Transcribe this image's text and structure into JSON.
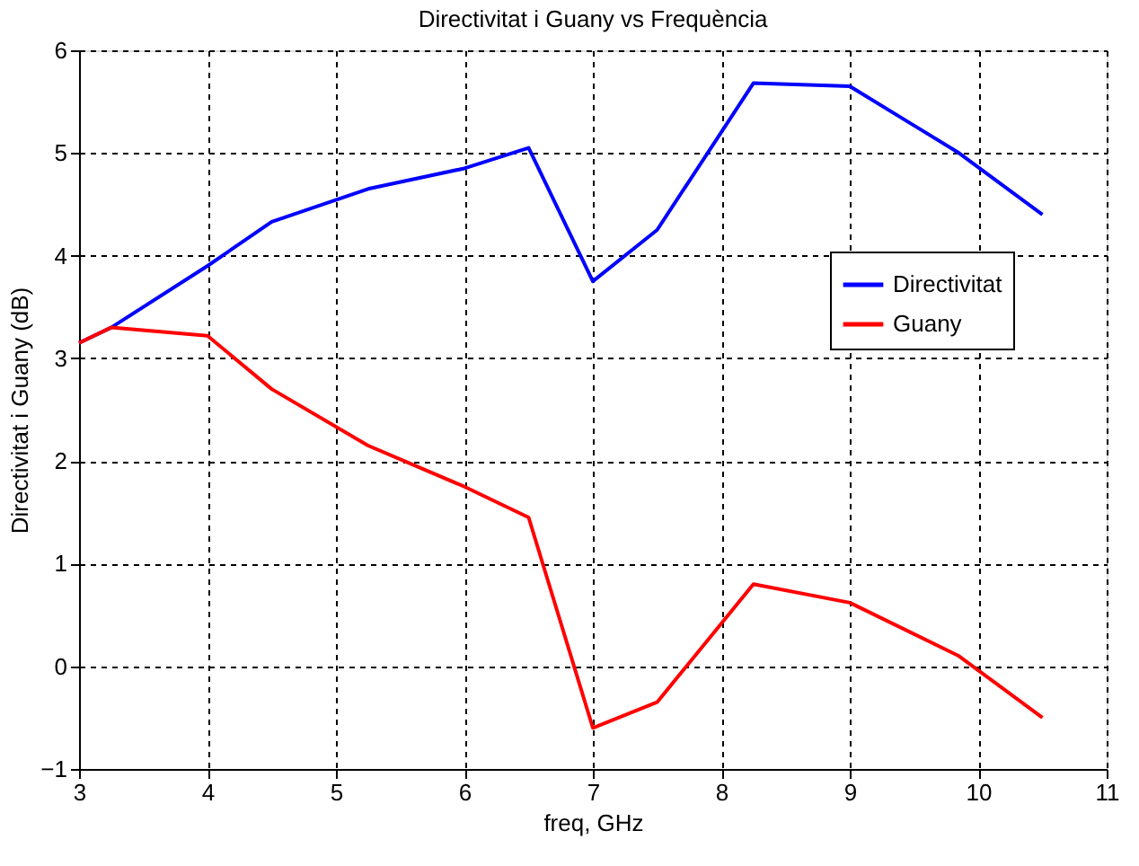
{
  "chart_data": {
    "type": "line",
    "title": "Directivitat i Guany vs Frequència",
    "xlabel": "freq, GHz",
    "ylabel": "Directivitat i Guany (dB)",
    "xlim": [
      3,
      11
    ],
    "xticks": [
      3,
      4,
      5,
      6,
      7,
      8,
      9,
      10,
      11
    ],
    "ylim": [
      -1,
      6
    ],
    "yticks": [
      -1,
      0,
      1,
      2,
      3,
      4,
      5,
      6
    ],
    "grid": true,
    "legend": "right",
    "line_style": "solid",
    "marker": "none",
    "series": [
      {
        "name": "Directivitat",
        "color": "#0000ff",
        "x": [
          3,
          3.25,
          4,
          4.5,
          5.25,
          6,
          6.5,
          7,
          7.5,
          8.25,
          9,
          9.85,
          10.5
        ],
        "values": [
          3.15,
          3.3,
          3.9,
          4.33,
          4.65,
          4.85,
          5.05,
          3.75,
          4.25,
          5.68,
          5.65,
          5.0,
          4.4
        ]
      },
      {
        "name": "Guany",
        "color": "#ff0000",
        "x": [
          3,
          3.25,
          4,
          4.5,
          5.25,
          6,
          6.5,
          7,
          7.5,
          8.25,
          9,
          9.85,
          10.5
        ],
        "values": [
          3.15,
          3.3,
          3.22,
          2.7,
          2.15,
          1.75,
          1.45,
          -0.6,
          -0.35,
          0.8,
          0.62,
          0.1,
          -0.5
        ]
      }
    ]
  }
}
